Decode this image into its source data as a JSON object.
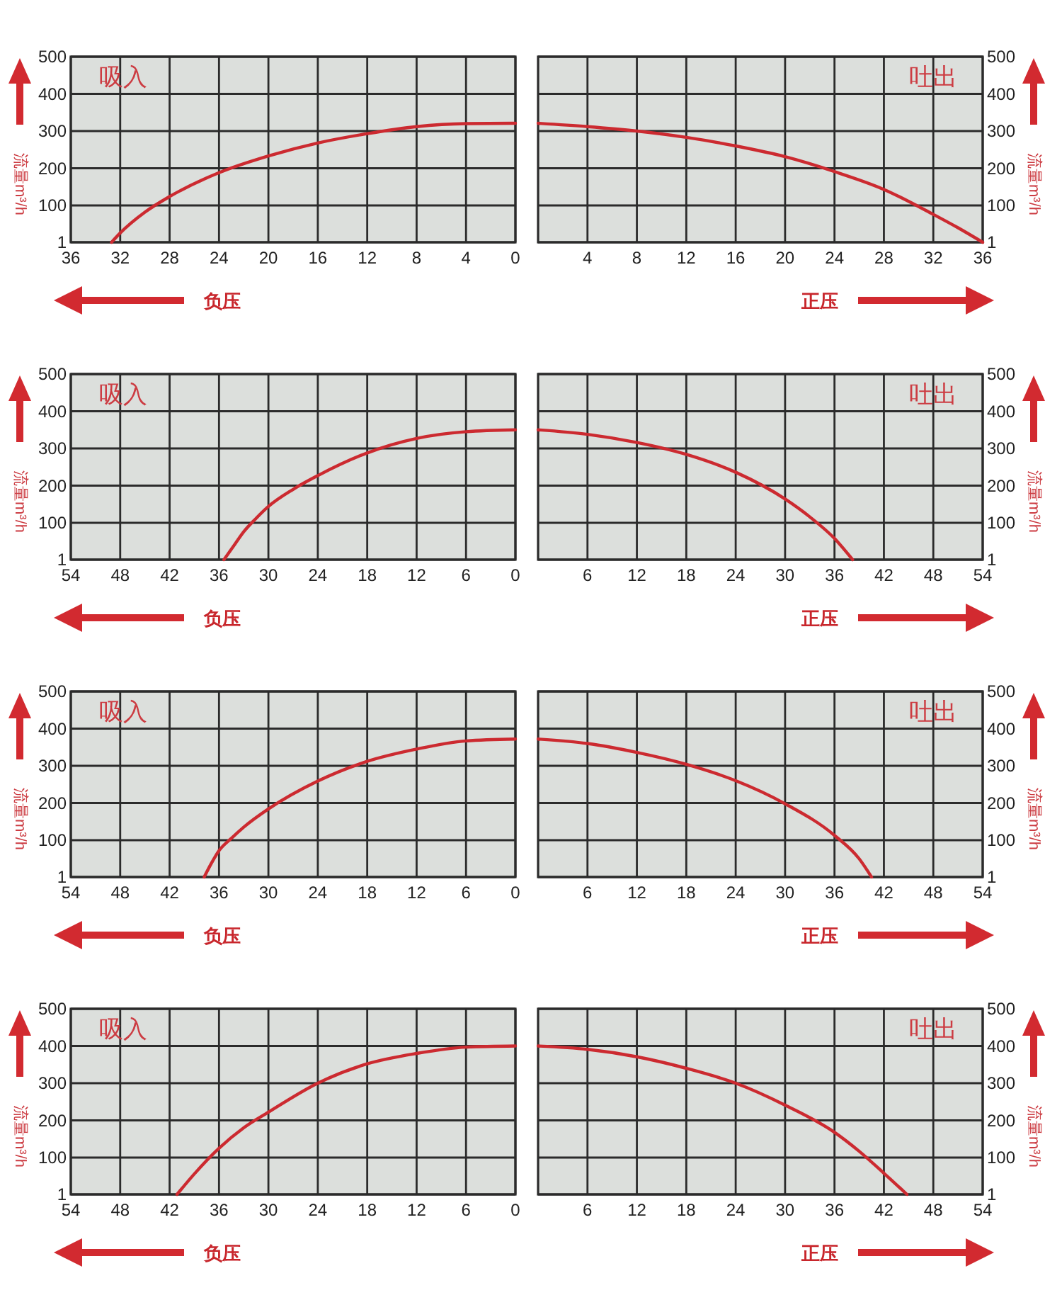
{
  "chart_data": [
    {
      "type": "line",
      "xlabel": "负压",
      "ylabel": "流量m³/h",
      "annotations": [
        "吸入"
      ],
      "x": [
        32.7,
        32,
        30,
        28,
        24,
        20,
        16,
        12,
        8,
        4,
        0
      ],
      "series": [
        {
          "color": "#cc2a30",
          "values": [
            1,
            26,
            82,
            124,
            188,
            233,
            268,
            293,
            312,
            320,
            321
          ]
        }
      ],
      "xlim": [
        36,
        0
      ],
      "xticks": [
        36,
        32,
        28,
        24,
        20,
        16,
        12,
        8,
        4,
        0
      ],
      "ylim": [
        1,
        500
      ],
      "yticks": [
        1,
        100,
        200,
        300,
        400,
        500
      ],
      "grid": true
    },
    {
      "type": "line",
      "xlabel": "正压",
      "y2label": "流量m³/h",
      "annotations": [
        "吐出"
      ],
      "x": [
        0,
        4,
        8,
        12,
        16,
        20,
        24,
        28,
        32,
        34,
        36
      ],
      "series": [
        {
          "color": "#cc2a30",
          "axis": "y2",
          "values": [
            321,
            312,
            300,
            283,
            260,
            231,
            191,
            143,
            76,
            40,
            1
          ]
        }
      ],
      "xlim": [
        0,
        36
      ],
      "xticks": [
        4,
        8,
        12,
        16,
        20,
        24,
        28,
        32,
        36
      ],
      "y2lim": [
        1,
        500
      ],
      "y2ticks": [
        1,
        100,
        200,
        300,
        400,
        500
      ],
      "grid": true
    },
    {
      "type": "line",
      "xlabel": "负压",
      "ylabel": "流量m³/h",
      "annotations": [
        "吸入"
      ],
      "x": [
        35.4,
        34,
        33,
        31.5,
        30,
        27,
        24,
        18,
        12,
        6,
        0
      ],
      "series": [
        {
          "color": "#cc2a30",
          "values": [
            1,
            45,
            76,
            112,
            144,
            190,
            227,
            288,
            327,
            345,
            350
          ]
        }
      ],
      "xlim": [
        54,
        0
      ],
      "xticks": [
        54,
        48,
        42,
        36,
        30,
        24,
        18,
        12,
        6,
        0
      ],
      "ylim": [
        1,
        500
      ],
      "yticks": [
        1,
        100,
        200,
        300,
        400,
        500
      ],
      "grid": true
    },
    {
      "type": "line",
      "xlabel": "正压",
      "y2label": "流量m³/h",
      "annotations": [
        "吐出"
      ],
      "x": [
        0,
        6,
        12,
        18,
        24,
        30,
        33,
        36,
        38.2
      ],
      "series": [
        {
          "color": "#cc2a30",
          "axis": "y2",
          "values": [
            350,
            338,
            316,
            284,
            236,
            164,
            116,
            58,
            1
          ]
        }
      ],
      "xlim": [
        0,
        54
      ],
      "xticks": [
        6,
        12,
        18,
        24,
        30,
        36,
        42,
        48,
        54
      ],
      "y2lim": [
        1,
        500
      ],
      "y2ticks": [
        1,
        100,
        200,
        300,
        400,
        500
      ],
      "grid": true
    },
    {
      "type": "line",
      "xlabel": "负压",
      "ylabel": "流量m³/h",
      "annotations": [
        "吸入"
      ],
      "x": [
        37.8,
        37,
        36,
        34.5,
        33,
        30,
        24,
        18,
        12,
        6,
        0
      ],
      "series": [
        {
          "color": "#cc2a30",
          "values": [
            1,
            35,
            72,
            105,
            135,
            184,
            259,
            312,
            345,
            367,
            372
          ]
        }
      ],
      "xlim": [
        54,
        0
      ],
      "xticks": [
        54,
        48,
        42,
        36,
        30,
        24,
        18,
        12,
        6,
        0
      ],
      "ylim": [
        1,
        500
      ],
      "yticks": [
        1,
        100,
        200,
        300,
        400,
        500
      ],
      "grid": true
    },
    {
      "type": "line",
      "xlabel": "正压",
      "y2label": "流量m³/h",
      "annotations": [
        "吐出"
      ],
      "x": [
        0,
        6,
        12,
        18,
        24,
        30,
        36,
        39,
        40.5
      ],
      "series": [
        {
          "color": "#cc2a30",
          "axis": "y2",
          "values": [
            372,
            360,
            336,
            304,
            260,
            198,
            113,
            50,
            1
          ]
        }
      ],
      "xlim": [
        0,
        54
      ],
      "xticks": [
        6,
        12,
        18,
        24,
        30,
        36,
        42,
        48,
        54
      ],
      "y2lim": [
        1,
        500
      ],
      "y2ticks": [
        1,
        100,
        200,
        300,
        400,
        500
      ],
      "grid": true
    },
    {
      "type": "line",
      "xlabel": "负压",
      "ylabel": "流量m³/h",
      "annotations": [
        "吸入"
      ],
      "x": [
        41.1,
        39,
        36,
        33,
        30,
        24,
        18,
        12,
        6,
        0
      ],
      "series": [
        {
          "color": "#cc2a30",
          "values": [
            1,
            56,
            125,
            180,
            222,
            300,
            352,
            380,
            397,
            400
          ]
        }
      ],
      "xlim": [
        54,
        0
      ],
      "xticks": [
        54,
        48,
        42,
        36,
        30,
        24,
        18,
        12,
        6,
        0
      ],
      "ylim": [
        1,
        500
      ],
      "yticks": [
        1,
        100,
        200,
        300,
        400,
        500
      ],
      "grid": true
    },
    {
      "type": "line",
      "xlabel": "正压",
      "y2label": "流量m³/h",
      "annotations": [
        "吐出"
      ],
      "x": [
        0,
        6,
        12,
        18,
        24,
        30,
        36,
        39,
        42,
        44.8
      ],
      "series": [
        {
          "color": "#cc2a30",
          "axis": "y2",
          "values": [
            400,
            391,
            371,
            340,
            300,
            241,
            168,
            117,
            58,
            1
          ]
        }
      ],
      "xlim": [
        0,
        54
      ],
      "xticks": [
        6,
        12,
        18,
        24,
        30,
        36,
        42,
        48,
        54
      ],
      "y2lim": [
        1,
        500
      ],
      "y2ticks": [
        1,
        100,
        200,
        300,
        400,
        500
      ],
      "grid": true
    }
  ]
}
